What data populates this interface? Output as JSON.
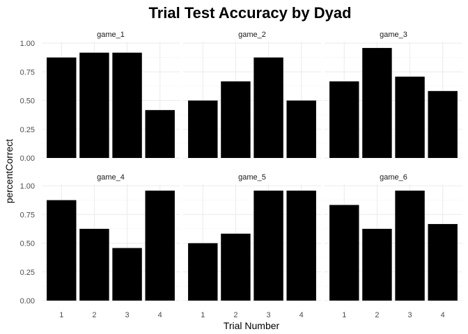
{
  "chart_data": {
    "type": "bar",
    "title": "Trial Test Accuracy by Dyad",
    "xlabel": "Trial Number",
    "ylabel": "percentCorrect",
    "categories": [
      "1",
      "2",
      "3",
      "4"
    ],
    "ylim": [
      0,
      1
    ],
    "yticks": [
      "0.00",
      "0.25",
      "0.50",
      "0.75",
      "1.00"
    ],
    "bar_color": "#000000",
    "grid": true,
    "facets": [
      {
        "name": "game_1",
        "values": [
          0.875,
          0.917,
          0.917,
          0.417
        ]
      },
      {
        "name": "game_2",
        "values": [
          0.5,
          0.667,
          0.875,
          0.5
        ]
      },
      {
        "name": "game_3",
        "values": [
          0.667,
          0.958,
          0.708,
          0.583
        ]
      },
      {
        "name": "game_4",
        "values": [
          0.875,
          0.625,
          0.458,
          0.958
        ]
      },
      {
        "name": "game_5",
        "values": [
          0.5,
          0.583,
          0.958,
          0.958
        ]
      },
      {
        "name": "game_6",
        "values": [
          0.833,
          0.625,
          0.958,
          0.667
        ]
      }
    ]
  }
}
